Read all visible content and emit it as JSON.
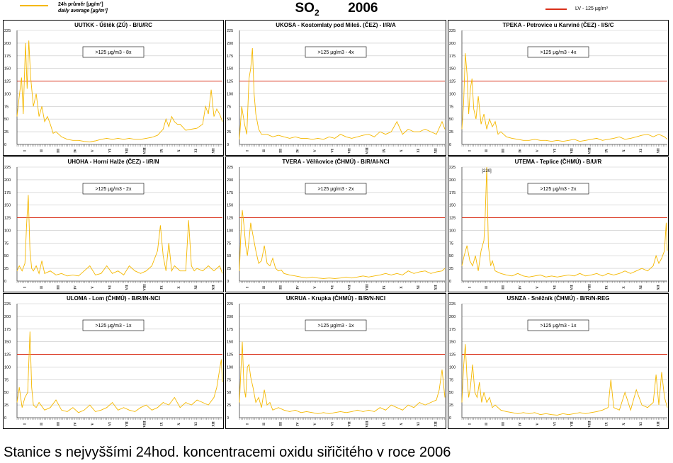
{
  "header": {
    "legend_avg_label_cz": "24h průměr [µg/m³]",
    "legend_avg_label_en": "daily average [µg/m³]",
    "legend_lv_label": "LV   - 125 µg/m³",
    "title_main": "SO",
    "title_sub": "2",
    "title_year": "2006",
    "series_color": "#F5B800",
    "limit_color": "#D9301A"
  },
  "caption": "Stanice s nejvyššími 24hod. koncentracemi oxidu siřičitého v roce 2006",
  "chart_data": [
    {
      "type": "line",
      "title": "UUTKK - Úštěk (ZÚ) - B/U/RC",
      "ylim": [
        0,
        225
      ],
      "yticks": [
        0,
        25,
        50,
        75,
        100,
        125,
        150,
        175,
        200,
        225
      ],
      "months": [
        "I",
        "II",
        "III",
        "IV",
        "V",
        "VI",
        "VII",
        "VIII",
        "IX",
        "X",
        "XI",
        "XII"
      ],
      "limit": 125,
      "exceedance_label": ">125 µg/m3 - 8x",
      "x": [
        1,
        5,
        9,
        12,
        16,
        19,
        22,
        25,
        30,
        35,
        40,
        45,
        50,
        55,
        60,
        65,
        70,
        80,
        90,
        100,
        110,
        120,
        130,
        140,
        150,
        160,
        170,
        180,
        190,
        200,
        210,
        220,
        230,
        240,
        250,
        260,
        265,
        270,
        275,
        280,
        285,
        290,
        300,
        310,
        320,
        330,
        335,
        340,
        345,
        350,
        355,
        360,
        365
      ],
      "y": [
        55,
        95,
        132,
        60,
        200,
        110,
        205,
        135,
        75,
        100,
        55,
        75,
        45,
        55,
        40,
        22,
        25,
        15,
        10,
        8,
        8,
        6,
        5,
        7,
        10,
        12,
        10,
        12,
        10,
        12,
        10,
        10,
        12,
        14,
        18,
        30,
        50,
        35,
        55,
        45,
        40,
        40,
        28,
        30,
        32,
        40,
        75,
        60,
        108,
        55,
        70,
        60,
        45
      ]
    },
    {
      "type": "line",
      "title": "UKOSA - Kostomlaty pod Mileš. (ČEZ) - I/R/A",
      "ylim": [
        0,
        225
      ],
      "yticks": [
        0,
        25,
        50,
        75,
        100,
        125,
        150,
        175,
        200,
        225
      ],
      "months": [
        "I",
        "II",
        "III",
        "IV",
        "V",
        "VI",
        "VII",
        "VIII",
        "IX",
        "X",
        "XI",
        "XII"
      ],
      "limit": 125,
      "exceedance_label": ">125 µg/m3 - 4x",
      "x": [
        1,
        5,
        10,
        14,
        18,
        21,
        24,
        27,
        30,
        35,
        40,
        50,
        60,
        70,
        80,
        90,
        100,
        110,
        120,
        130,
        140,
        150,
        160,
        170,
        180,
        190,
        200,
        210,
        220,
        230,
        240,
        250,
        260,
        270,
        280,
        290,
        300,
        310,
        320,
        330,
        340,
        350,
        360,
        365
      ],
      "y": [
        10,
        75,
        40,
        20,
        130,
        150,
        190,
        100,
        60,
        30,
        20,
        20,
        15,
        18,
        15,
        12,
        15,
        12,
        12,
        10,
        12,
        10,
        15,
        12,
        20,
        15,
        12,
        15,
        18,
        20,
        15,
        25,
        20,
        25,
        45,
        20,
        30,
        25,
        25,
        30,
        25,
        20,
        45,
        30
      ]
    },
    {
      "type": "line",
      "title": "TPEKA - Petrovice u Karviné (ČEZ) - I/S/C",
      "ylim": [
        0,
        225
      ],
      "yticks": [
        0,
        25,
        50,
        75,
        100,
        125,
        150,
        175,
        200,
        225
      ],
      "months": [
        "I",
        "II",
        "III",
        "IV",
        "V",
        "VI",
        "VII",
        "VIII",
        "IX",
        "X",
        "XI",
        "XII"
      ],
      "limit": 125,
      "exceedance_label": ">125 µg/m3 - 4x",
      "x": [
        1,
        4,
        7,
        10,
        13,
        16,
        19,
        22,
        26,
        30,
        35,
        40,
        45,
        50,
        55,
        60,
        65,
        70,
        80,
        90,
        100,
        110,
        120,
        130,
        140,
        150,
        160,
        170,
        180,
        190,
        200,
        210,
        220,
        230,
        240,
        250,
        260,
        270,
        280,
        290,
        300,
        310,
        320,
        330,
        340,
        350,
        360,
        365
      ],
      "y": [
        30,
        80,
        180,
        140,
        60,
        110,
        130,
        70,
        50,
        95,
        40,
        60,
        30,
        50,
        35,
        45,
        20,
        25,
        15,
        12,
        10,
        8,
        8,
        10,
        8,
        8,
        6,
        8,
        6,
        8,
        10,
        6,
        8,
        10,
        12,
        8,
        10,
        12,
        15,
        10,
        12,
        15,
        18,
        20,
        15,
        20,
        15,
        10
      ]
    },
    {
      "type": "line",
      "title": "UHOHA - Horní Halže (ČEZ) - I/R/N",
      "ylim": [
        0,
        225
      ],
      "yticks": [
        0,
        25,
        50,
        75,
        100,
        125,
        150,
        175,
        200,
        225
      ],
      "months": [
        "I",
        "II",
        "III",
        "IV",
        "V",
        "VI",
        "VII",
        "VIII",
        "IX",
        "X",
        "XI",
        "XII"
      ],
      "limit": 125,
      "exceedance_label": ">125 µg/m3 - 2x",
      "x": [
        1,
        5,
        10,
        15,
        18,
        21,
        24,
        27,
        30,
        35,
        40,
        45,
        50,
        60,
        70,
        80,
        90,
        100,
        110,
        120,
        130,
        140,
        150,
        160,
        170,
        180,
        190,
        200,
        210,
        220,
        230,
        240,
        250,
        255,
        260,
        265,
        270,
        275,
        280,
        290,
        300,
        305,
        310,
        315,
        320,
        330,
        340,
        350,
        360,
        365
      ],
      "y": [
        20,
        30,
        20,
        35,
        110,
        170,
        60,
        25,
        20,
        30,
        15,
        40,
        15,
        20,
        12,
        15,
        10,
        12,
        10,
        20,
        30,
        12,
        15,
        30,
        15,
        20,
        12,
        30,
        20,
        15,
        20,
        30,
        60,
        110,
        50,
        20,
        75,
        20,
        30,
        20,
        20,
        120,
        30,
        20,
        25,
        20,
        30,
        20,
        30,
        15
      ]
    },
    {
      "type": "line",
      "title": "TVERA - Věřňovice (ČHMÚ) - B/R/AI-NCI",
      "ylim": [
        0,
        225
      ],
      "yticks": [
        0,
        25,
        50,
        75,
        100,
        125,
        150,
        175,
        200,
        225
      ],
      "months": [
        "I",
        "II",
        "III",
        "IV",
        "V",
        "VI",
        "VII",
        "VIII",
        "IX",
        "X",
        "XI",
        "XII"
      ],
      "limit": 125,
      "exceedance_label": ">125 µg/m3 - 2x",
      "x": [
        1,
        3,
        6,
        9,
        12,
        15,
        18,
        21,
        25,
        30,
        35,
        40,
        45,
        50,
        55,
        60,
        65,
        70,
        75,
        80,
        90,
        100,
        110,
        120,
        130,
        140,
        150,
        160,
        170,
        180,
        190,
        200,
        210,
        220,
        230,
        240,
        250,
        260,
        270,
        280,
        290,
        300,
        310,
        320,
        330,
        340,
        350,
        360,
        365
      ],
      "y": [
        20,
        80,
        140,
        110,
        70,
        50,
        80,
        115,
        90,
        60,
        35,
        40,
        70,
        35,
        30,
        45,
        25,
        20,
        22,
        15,
        12,
        10,
        8,
        6,
        8,
        6,
        5,
        6,
        5,
        6,
        8,
        6,
        8,
        10,
        8,
        10,
        12,
        15,
        12,
        15,
        12,
        20,
        15,
        18,
        20,
        15,
        18,
        20,
        25
      ]
    },
    {
      "type": "line",
      "title": "UTEMA - Teplice (ČHMÚ) - B/U/R",
      "ylim": [
        0,
        225
      ],
      "yticks": [
        0,
        25,
        50,
        75,
        100,
        125,
        150,
        175,
        200,
        225
      ],
      "months": [
        "I",
        "II",
        "III",
        "IV",
        "V",
        "VI",
        "VII",
        "VIII",
        "IX",
        "X",
        "XI",
        "XII"
      ],
      "limit": 125,
      "exceedance_label": ">125 µg/m3 - 2x",
      "peak_label": "[230]",
      "x": [
        1,
        5,
        10,
        15,
        20,
        25,
        30,
        35,
        40,
        42,
        45,
        48,
        52,
        55,
        60,
        70,
        80,
        90,
        100,
        110,
        120,
        130,
        140,
        150,
        160,
        170,
        180,
        190,
        200,
        210,
        220,
        230,
        240,
        250,
        260,
        270,
        280,
        290,
        300,
        310,
        320,
        330,
        340,
        345,
        350,
        355,
        360,
        363,
        365
      ],
      "y": [
        30,
        50,
        70,
        40,
        30,
        50,
        20,
        60,
        80,
        120,
        225,
        70,
        30,
        40,
        20,
        15,
        12,
        10,
        15,
        10,
        8,
        10,
        12,
        8,
        10,
        8,
        10,
        12,
        10,
        15,
        10,
        12,
        15,
        10,
        15,
        12,
        15,
        20,
        15,
        20,
        25,
        20,
        30,
        50,
        35,
        45,
        60,
        115,
        60
      ]
    },
    {
      "type": "line",
      "title": "ULOMA - Lom (ČHMÚ) - B/R/IN-NCI",
      "ylim": [
        0,
        225
      ],
      "yticks": [
        0,
        25,
        50,
        75,
        100,
        125,
        150,
        175,
        200,
        225
      ],
      "months": [
        "I",
        "II",
        "III",
        "IV",
        "V",
        "VI",
        "VII",
        "VIII",
        "IX",
        "X",
        "XI",
        "XII"
      ],
      "limit": 125,
      "exceedance_label": ">125 µg/m3 - 1x",
      "x": [
        1,
        5,
        10,
        15,
        20,
        24,
        27,
        30,
        35,
        40,
        50,
        60,
        70,
        80,
        90,
        100,
        110,
        120,
        130,
        140,
        150,
        160,
        170,
        180,
        190,
        200,
        210,
        220,
        230,
        240,
        250,
        260,
        270,
        280,
        290,
        300,
        310,
        320,
        330,
        340,
        350,
        355,
        360,
        363,
        365
      ],
      "y": [
        30,
        60,
        20,
        40,
        50,
        170,
        60,
        25,
        20,
        30,
        15,
        20,
        35,
        15,
        12,
        20,
        10,
        15,
        25,
        12,
        15,
        20,
        30,
        15,
        20,
        15,
        12,
        20,
        25,
        15,
        20,
        30,
        25,
        40,
        20,
        30,
        25,
        35,
        30,
        25,
        40,
        60,
        95,
        115,
        70
      ]
    },
    {
      "type": "line",
      "title": "UKRUA - Krupka (ČHMÚ) - B/R/N-NCI",
      "ylim": [
        0,
        225
      ],
      "yticks": [
        0,
        25,
        50,
        75,
        100,
        125,
        150,
        175,
        200,
        225
      ],
      "months": [
        "I",
        "II",
        "III",
        "IV",
        "V",
        "VI",
        "VII",
        "VIII",
        "IX",
        "X",
        "XI",
        "XII"
      ],
      "limit": 125,
      "exceedance_label": ">125 µg/m3 - 1x",
      "x": [
        1,
        3,
        6,
        9,
        12,
        15,
        18,
        21,
        25,
        30,
        35,
        40,
        45,
        50,
        55,
        60,
        70,
        80,
        90,
        100,
        110,
        120,
        130,
        140,
        150,
        160,
        170,
        180,
        190,
        200,
        210,
        220,
        230,
        240,
        250,
        260,
        270,
        280,
        290,
        300,
        310,
        320,
        330,
        340,
        350,
        355,
        360,
        365
      ],
      "y": [
        30,
        80,
        150,
        60,
        40,
        100,
        105,
        80,
        60,
        30,
        40,
        20,
        55,
        25,
        30,
        15,
        20,
        15,
        12,
        15,
        10,
        12,
        10,
        8,
        10,
        8,
        10,
        12,
        10,
        12,
        15,
        12,
        15,
        12,
        20,
        15,
        25,
        20,
        15,
        25,
        20,
        30,
        25,
        30,
        35,
        55,
        95,
        40
      ]
    },
    {
      "type": "line",
      "title": "USNZA - Sněžník (ČHMÚ) - B/R/N-REG",
      "ylim": [
        0,
        225
      ],
      "yticks": [
        0,
        25,
        50,
        75,
        100,
        125,
        150,
        175,
        200,
        225
      ],
      "months": [
        "I",
        "II",
        "III",
        "IV",
        "V",
        "VI",
        "VII",
        "VIII",
        "IX",
        "X",
        "XI",
        "XII"
      ],
      "limit": 125,
      "exceedance_label": ">125 µg/m3 - 1x",
      "x": [
        1,
        4,
        7,
        10,
        13,
        16,
        20,
        24,
        28,
        32,
        36,
        40,
        45,
        50,
        55,
        60,
        70,
        80,
        90,
        100,
        110,
        120,
        130,
        140,
        150,
        160,
        170,
        180,
        190,
        200,
        210,
        220,
        230,
        240,
        250,
        260,
        265,
        270,
        280,
        290,
        300,
        310,
        320,
        330,
        340,
        345,
        350,
        355,
        360,
        365
      ],
      "y": [
        30,
        100,
        145,
        80,
        40,
        60,
        105,
        50,
        40,
        70,
        30,
        50,
        30,
        40,
        20,
        25,
        15,
        12,
        10,
        8,
        10,
        8,
        10,
        6,
        8,
        6,
        5,
        8,
        6,
        8,
        10,
        8,
        10,
        12,
        15,
        20,
        75,
        20,
        15,
        50,
        15,
        55,
        25,
        20,
        30,
        85,
        25,
        90,
        40,
        20
      ]
    }
  ]
}
